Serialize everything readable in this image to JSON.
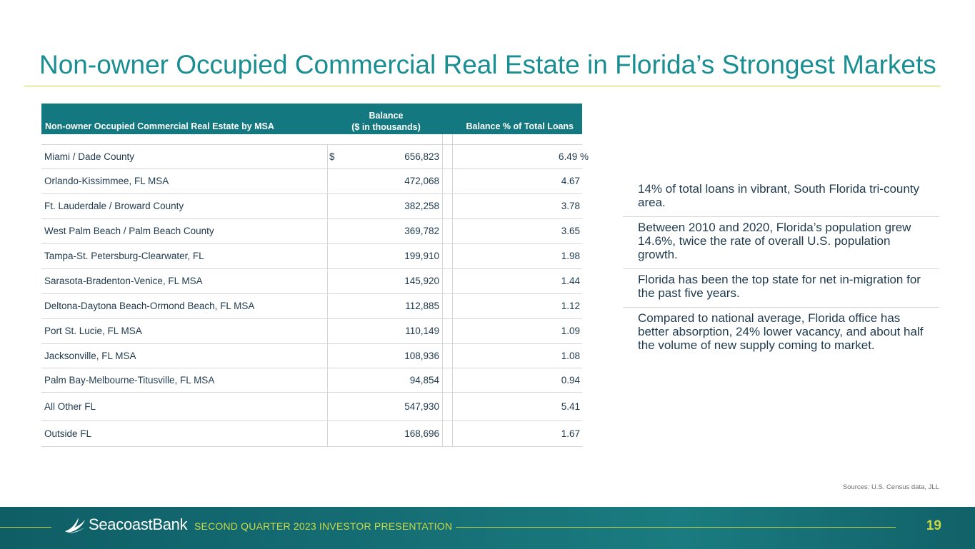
{
  "title": "Non-owner Occupied Commercial Real Estate in Florida’s Strongest Markets",
  "table": {
    "headers": {
      "msa": "Non-owner Occupied Commercial Real Estate by MSA",
      "balance_line1": "Balance",
      "balance_line2": "($ in thousands)",
      "pct": "Balance % of Total Loans"
    },
    "currency_symbol": "$",
    "percent_symbol": "%",
    "rows": [
      {
        "name": "Miami / Dade County",
        "balance": "656,823",
        "pct": "6.49"
      },
      {
        "name": "Orlando-Kissimmee, FL MSA",
        "balance": "472,068",
        "pct": "4.67"
      },
      {
        "name": "Ft. Lauderdale / Broward County",
        "balance": "382,258",
        "pct": "3.78"
      },
      {
        "name": "West Palm Beach / Palm Beach County",
        "balance": "369,782",
        "pct": "3.65"
      },
      {
        "name": "Tampa-St. Petersburg-Clearwater, FL",
        "balance": "199,910",
        "pct": "1.98"
      },
      {
        "name": "Sarasota-Bradenton-Venice, FL MSA",
        "balance": "145,920",
        "pct": "1.44"
      },
      {
        "name": "Deltona-Daytona Beach-Ormond Beach, FL MSA",
        "balance": "112,885",
        "pct": "1.12"
      },
      {
        "name": "Port St. Lucie, FL MSA",
        "balance": "110,149",
        "pct": "1.09"
      },
      {
        "name": "Jacksonville, FL MSA",
        "balance": "108,936",
        "pct": "1.08"
      },
      {
        "name": "Palm Bay-Melbourne-Titusville, FL MSA",
        "balance": "94,854",
        "pct": "0.94"
      },
      {
        "name": "All Other FL",
        "balance": "547,930",
        "pct": "5.41"
      },
      {
        "name": "Outside FL",
        "balance": "168,696",
        "pct": "1.67"
      }
    ]
  },
  "bullets": [
    "14% of total loans in vibrant, South Florida tri-county area.",
    "Between 2010 and 2020, Florida’s population grew 14.6%, twice the rate of overall U.S. population growth.",
    "Florida has been the top state for net in-migration for the past five years.",
    "Compared to national average, Florida office has better absorption, 24% lower vacancy, and about half the volume of new supply coming to market."
  ],
  "sources": "Sources: U.S. Census data, JLL",
  "footer": {
    "brand": "SeacoastBank",
    "presentation": "SECOND QUARTER 2023 INVESTOR PRESENTATION",
    "page_number": "19"
  },
  "colors": {
    "title": "#1a8f93",
    "header_bg": "#13787f",
    "accent": "#c9d945",
    "footer_bg": "#156e74"
  }
}
